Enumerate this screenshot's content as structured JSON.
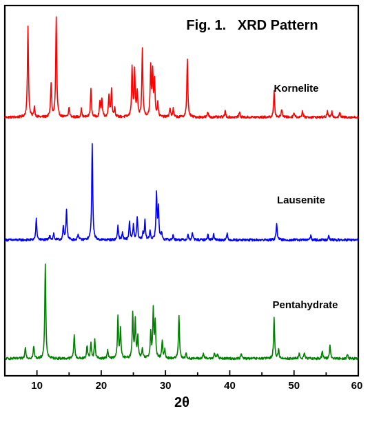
{
  "chart_data": {
    "type": "line",
    "title": "Fig. 1.   XRD Pattern",
    "xlabel": "2θ",
    "ylabel": "",
    "xlim": [
      5,
      60
    ],
    "xticks": [
      10,
      20,
      30,
      40,
      50,
      60
    ],
    "y_axis_shown": false,
    "grid": false,
    "legend": "none",
    "series": [
      {
        "name": "Kornelite",
        "color": "#ff0000",
        "baseline": 0,
        "noise": 0.012,
        "peaks": [
          [
            8.6,
            0.9
          ],
          [
            9.6,
            0.1
          ],
          [
            12.2,
            0.33
          ],
          [
            13.0,
            0.98
          ],
          [
            15.0,
            0.1
          ],
          [
            16.9,
            0.08
          ],
          [
            18.4,
            0.27
          ],
          [
            19.8,
            0.15
          ],
          [
            20.1,
            0.18
          ],
          [
            21.2,
            0.22
          ],
          [
            21.6,
            0.27
          ],
          [
            22.1,
            0.09
          ],
          [
            24.8,
            0.48
          ],
          [
            25.2,
            0.44
          ],
          [
            25.6,
            0.24
          ],
          [
            26.4,
            0.66
          ],
          [
            27.7,
            0.48
          ],
          [
            28.0,
            0.43
          ],
          [
            28.3,
            0.35
          ],
          [
            28.8,
            0.13
          ],
          [
            30.7,
            0.09
          ],
          [
            31.2,
            0.08
          ],
          [
            33.4,
            0.56
          ],
          [
            36.6,
            0.05
          ],
          [
            39.3,
            0.06
          ],
          [
            41.5,
            0.05
          ],
          [
            46.9,
            0.25
          ],
          [
            48.1,
            0.08
          ],
          [
            50.0,
            0.05
          ],
          [
            51.3,
            0.06
          ],
          [
            55.2,
            0.06
          ],
          [
            55.9,
            0.05
          ],
          [
            57.1,
            0.05
          ]
        ]
      },
      {
        "name": "Lausenite",
        "color": "#0000ff",
        "baseline": 0,
        "noise": 0.012,
        "peaks": [
          [
            9.9,
            0.2
          ],
          [
            12.0,
            0.05
          ],
          [
            12.6,
            0.06
          ],
          [
            14.1,
            0.12
          ],
          [
            14.6,
            0.3
          ],
          [
            16.4,
            0.06
          ],
          [
            18.6,
            0.92
          ],
          [
            22.6,
            0.14
          ],
          [
            23.3,
            0.07
          ],
          [
            24.4,
            0.18
          ],
          [
            25.0,
            0.14
          ],
          [
            25.6,
            0.22
          ],
          [
            26.5,
            0.07
          ],
          [
            26.8,
            0.18
          ],
          [
            27.6,
            0.09
          ],
          [
            28.6,
            0.45
          ],
          [
            28.9,
            0.3
          ],
          [
            29.4,
            0.07
          ],
          [
            31.2,
            0.05
          ],
          [
            33.5,
            0.05
          ],
          [
            34.2,
            0.07
          ],
          [
            36.6,
            0.05
          ],
          [
            37.5,
            0.06
          ],
          [
            39.6,
            0.06
          ],
          [
            47.3,
            0.17
          ],
          [
            52.6,
            0.04
          ],
          [
            55.4,
            0.05
          ]
        ]
      },
      {
        "name": "Pentahydrate",
        "color": "#008000",
        "baseline": 0,
        "noise": 0.012,
        "peaks": [
          [
            8.2,
            0.12
          ],
          [
            9.5,
            0.12
          ],
          [
            11.3,
            0.94
          ],
          [
            15.8,
            0.24
          ],
          [
            17.8,
            0.13
          ],
          [
            18.4,
            0.16
          ],
          [
            19.0,
            0.19
          ],
          [
            21.0,
            0.08
          ],
          [
            22.6,
            0.42
          ],
          [
            23.0,
            0.28
          ],
          [
            24.9,
            0.45
          ],
          [
            25.3,
            0.38
          ],
          [
            25.7,
            0.22
          ],
          [
            26.4,
            0.09
          ],
          [
            27.7,
            0.26
          ],
          [
            28.1,
            0.47
          ],
          [
            28.4,
            0.36
          ],
          [
            29.5,
            0.17
          ],
          [
            29.9,
            0.08
          ],
          [
            32.1,
            0.43
          ],
          [
            33.2,
            0.05
          ],
          [
            35.9,
            0.05
          ],
          [
            37.6,
            0.06
          ],
          [
            38.1,
            0.05
          ],
          [
            41.8,
            0.05
          ],
          [
            46.9,
            0.4
          ],
          [
            47.6,
            0.09
          ],
          [
            50.8,
            0.05
          ],
          [
            51.6,
            0.05
          ],
          [
            54.4,
            0.07
          ],
          [
            55.6,
            0.14
          ],
          [
            58.3,
            0.04
          ]
        ]
      }
    ]
  }
}
